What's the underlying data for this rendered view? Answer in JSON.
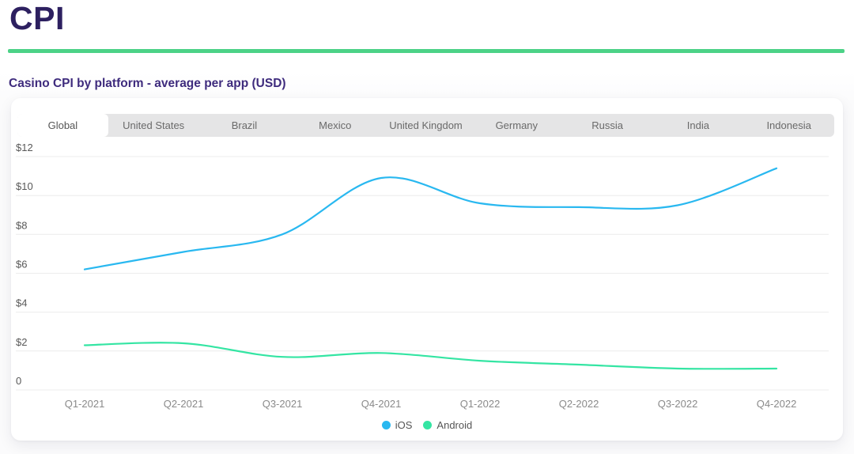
{
  "page": {
    "title": "CPI",
    "subtitle": "Casino CPI by platform - average per app (USD)"
  },
  "tabs": {
    "items": [
      "Global",
      "United States",
      "Brazil",
      "Mexico",
      "United Kingdom",
      "Germany",
      "Russia",
      "India",
      "Indonesia"
    ],
    "active": "Global"
  },
  "chart_data": {
    "type": "line",
    "title": "Casino CPI by platform - average per app (USD)",
    "categories": [
      "Q1-2021",
      "Q2-2021",
      "Q3-2021",
      "Q4-2021",
      "Q1-2022",
      "Q2-2022",
      "Q3-2022",
      "Q4-2022"
    ],
    "series": [
      {
        "name": "iOS",
        "color": "#29b8f0",
        "values": [
          6.2,
          7.1,
          8.0,
          10.9,
          9.6,
          9.4,
          9.5,
          11.4
        ]
      },
      {
        "name": "Android",
        "color": "#34e5a3",
        "values": [
          2.3,
          2.4,
          1.7,
          1.9,
          1.5,
          1.3,
          1.1,
          1.1
        ]
      }
    ],
    "y_ticks": [
      {
        "value": 12,
        "label": "$12"
      },
      {
        "value": 10,
        "label": "$10"
      },
      {
        "value": 8,
        "label": "$8"
      },
      {
        "value": 6,
        "label": "$6"
      },
      {
        "value": 4,
        "label": "$4"
      },
      {
        "value": 2,
        "label": "$2"
      },
      {
        "value": 0,
        "label": "0"
      }
    ],
    "ylim": [
      0,
      12
    ],
    "xlabel": "",
    "ylabel": "",
    "grid": true,
    "legend_position": "bottom"
  },
  "colors": {
    "accent_green": "#4cd287",
    "title_purple": "#2d2060",
    "subtitle_purple": "#3e2b7d",
    "grid_gray": "#ececec",
    "tab_bar_gray": "#e5e5e6"
  }
}
